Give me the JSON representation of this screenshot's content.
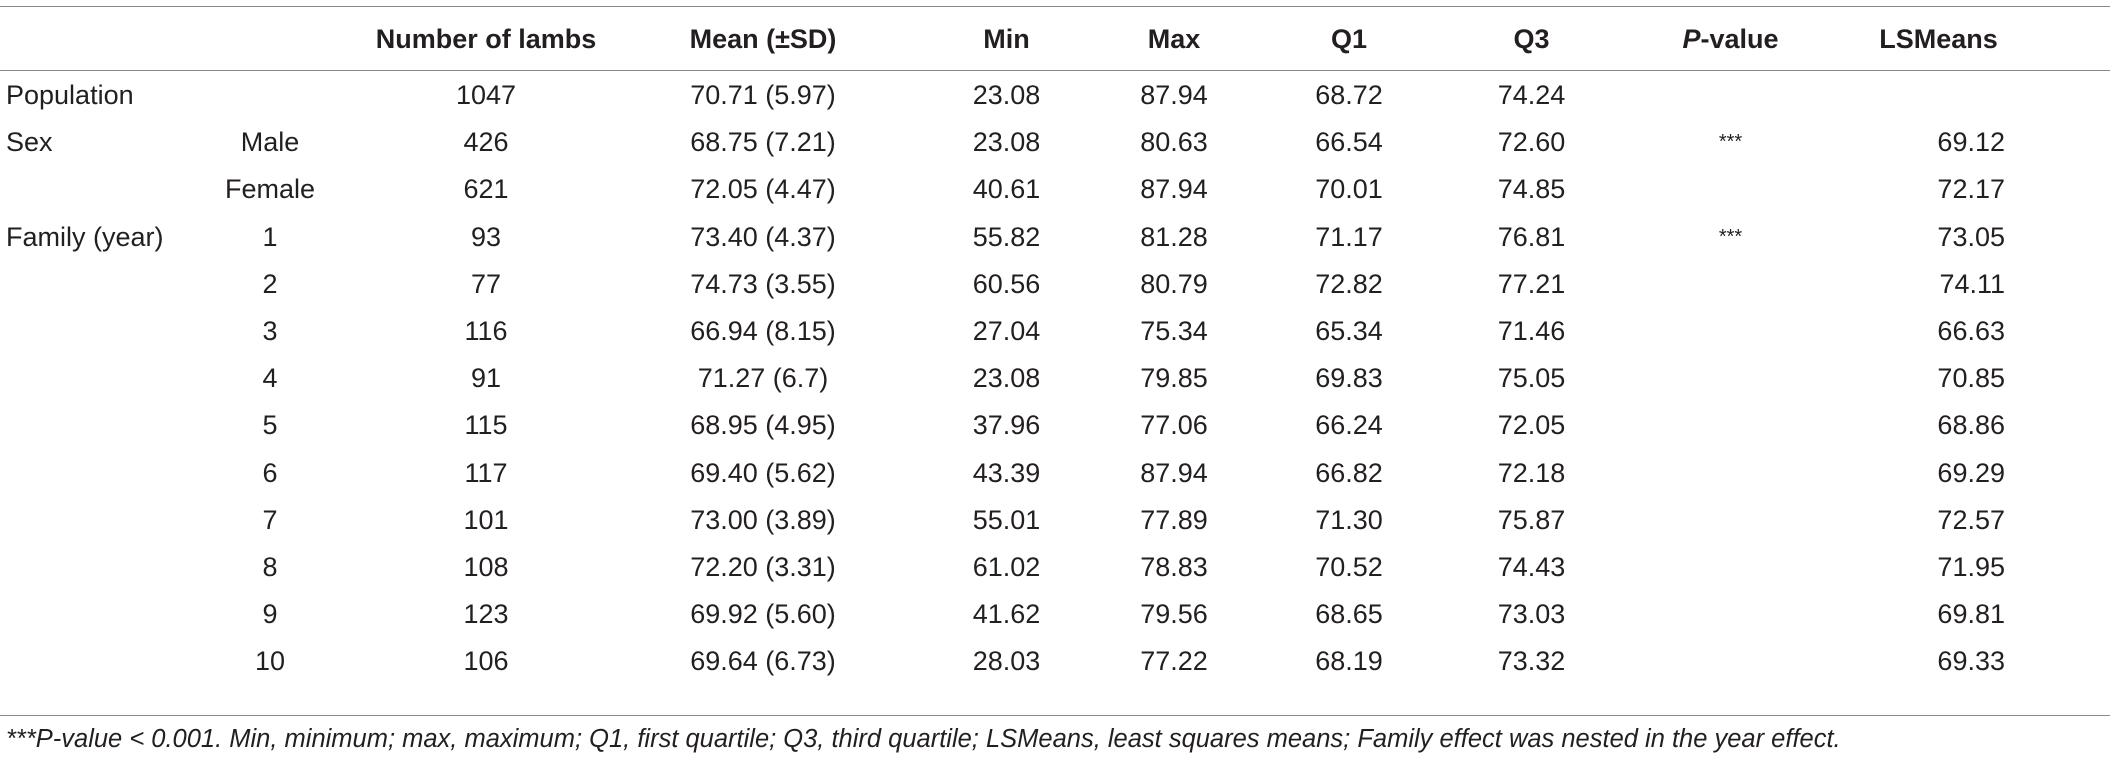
{
  "table": {
    "headers": [
      "",
      "",
      "Number of lambs",
      "Mean (±SD)",
      "Min",
      "Max",
      "Q1",
      "Q3",
      "P-value",
      "LSMeans"
    ],
    "pvalue_header": {
      "italic_part": "P",
      "rest": "-value"
    },
    "rows": [
      [
        "Population",
        "",
        "1047",
        "70.71 (5.97)",
        "23.08",
        "87.94",
        "68.72",
        "74.24",
        "",
        ""
      ],
      [
        "Sex",
        "Male",
        "426",
        "68.75 (7.21)",
        "23.08",
        "80.63",
        "66.54",
        "72.60",
        "***",
        "69.12"
      ],
      [
        "",
        "Female",
        "621",
        "72.05 (4.47)",
        "40.61",
        "87.94",
        "70.01",
        "74.85",
        "",
        "72.17"
      ],
      [
        "Family (year)",
        "1",
        "93",
        "73.40 (4.37)",
        "55.82",
        "81.28",
        "71.17",
        "76.81",
        "***",
        "73.05"
      ],
      [
        "",
        "2",
        "77",
        "74.73 (3.55)",
        "60.56",
        "80.79",
        "72.82",
        "77.21",
        "",
        "74.11"
      ],
      [
        "",
        "3",
        "116",
        "66.94 (8.15)",
        "27.04",
        "75.34",
        "65.34",
        "71.46",
        "",
        "66.63"
      ],
      [
        "",
        "4",
        "91",
        "71.27 (6.7)",
        "23.08",
        "79.85",
        "69.83",
        "75.05",
        "",
        "70.85"
      ],
      [
        "",
        "5",
        "115",
        "68.95 (4.95)",
        "37.96",
        "77.06",
        "66.24",
        "72.05",
        "",
        "68.86"
      ],
      [
        "",
        "6",
        "117",
        "69.40 (5.62)",
        "43.39",
        "87.94",
        "66.82",
        "72.18",
        "",
        "69.29"
      ],
      [
        "",
        "7",
        "101",
        "73.00 (3.89)",
        "55.01",
        "77.89",
        "71.30",
        "75.87",
        "",
        "72.57"
      ],
      [
        "",
        "8",
        "108",
        "72.20 (3.31)",
        "61.02",
        "78.83",
        "70.52",
        "74.43",
        "",
        "71.95"
      ],
      [
        "",
        "9",
        "123",
        "69.92 (5.60)",
        "41.62",
        "79.56",
        "68.65",
        "73.03",
        "",
        "69.81"
      ],
      [
        "",
        "10",
        "106",
        "69.64 (6.73)",
        "28.03",
        "77.22",
        "68.19",
        "73.32",
        "",
        "69.33"
      ]
    ]
  },
  "footnote": "***P-value < 0.001. Min, minimum; max, maximum; Q1, first quartile; Q3, third quartile; LSMeans, least squares means; Family effect was nested in the year effect."
}
